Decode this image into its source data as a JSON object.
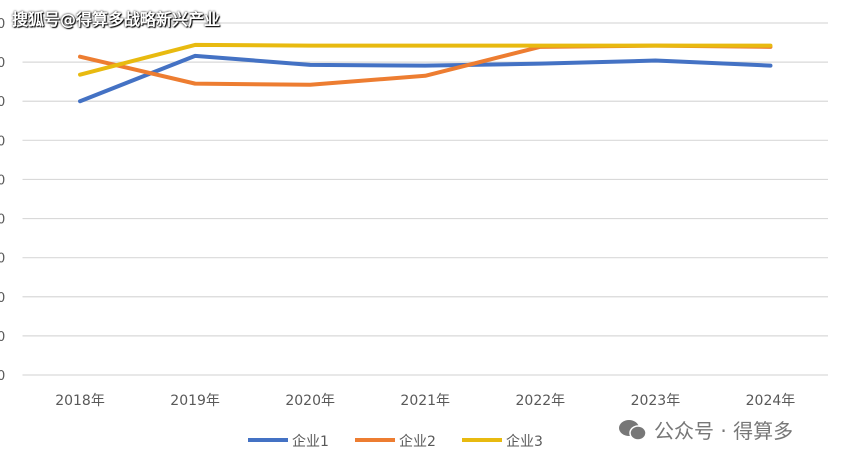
{
  "chart_data": {
    "type": "line",
    "title": "",
    "xlabel": "",
    "ylabel": "",
    "categories": [
      "2018年",
      "2019年",
      "2020年",
      "2021年",
      "2022年",
      "2023年",
      "2024年"
    ],
    "ylim": [
      0,
      9
    ],
    "grid": true,
    "legend_position": "bottom",
    "series": [
      {
        "name": "企业1",
        "color": "#4472C4",
        "values": [
          7.0,
          8.16,
          7.93,
          7.91,
          7.96,
          8.04,
          7.91
        ]
      },
      {
        "name": "企业2",
        "color": "#ED7D31",
        "values": [
          8.14,
          7.45,
          7.42,
          7.65,
          8.39,
          8.42,
          8.39
        ]
      },
      {
        "name": "企业3",
        "color": "#E8BA10",
        "values": [
          7.68,
          8.44,
          8.42,
          8.42,
          8.42,
          8.42,
          8.42
        ]
      }
    ]
  },
  "watermark_top": "搜狐号@得算多战略新兴产业",
  "watermark_bottom": "公众号 · 得算多"
}
